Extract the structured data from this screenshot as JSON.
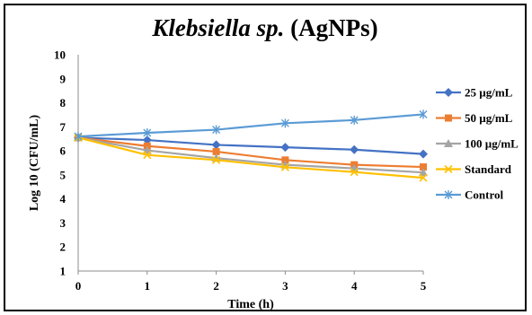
{
  "chart_data": {
    "type": "line",
    "title_italic": "Klebsiella sp.",
    "title_rest": " (AgNPs)",
    "xlabel": "Time (h)",
    "ylabel": "Log 10 (CFU/mL)",
    "x": [
      0,
      1,
      2,
      3,
      4,
      5
    ],
    "xlim": [
      0,
      5
    ],
    "ylim": [
      1,
      10
    ],
    "yticks": [
      1,
      2,
      3,
      4,
      5,
      6,
      7,
      8,
      9,
      10
    ],
    "grid": false,
    "legend_position": "right",
    "series": [
      {
        "name": "25 µg/mL",
        "color": "#4472C4",
        "marker": "diamond",
        "values": [
          6.55,
          6.45,
          6.25,
          6.15,
          6.05,
          5.87
        ]
      },
      {
        "name": "50 µg/mL",
        "color": "#ED7D31",
        "marker": "square",
        "values": [
          6.55,
          6.2,
          5.97,
          5.62,
          5.42,
          5.33
        ]
      },
      {
        "name": "100 µg/mL",
        "color": "#A5A5A5",
        "marker": "triangle",
        "values": [
          6.55,
          6.02,
          5.7,
          5.42,
          5.27,
          5.1
        ]
      },
      {
        "name": "Standard",
        "color": "#FFC000",
        "marker": "x",
        "values": [
          6.55,
          5.83,
          5.62,
          5.32,
          5.12,
          4.88
        ]
      },
      {
        "name": "Control",
        "color": "#5B9BD5",
        "marker": "star",
        "values": [
          6.6,
          6.75,
          6.88,
          7.15,
          7.28,
          7.52
        ]
      }
    ]
  }
}
